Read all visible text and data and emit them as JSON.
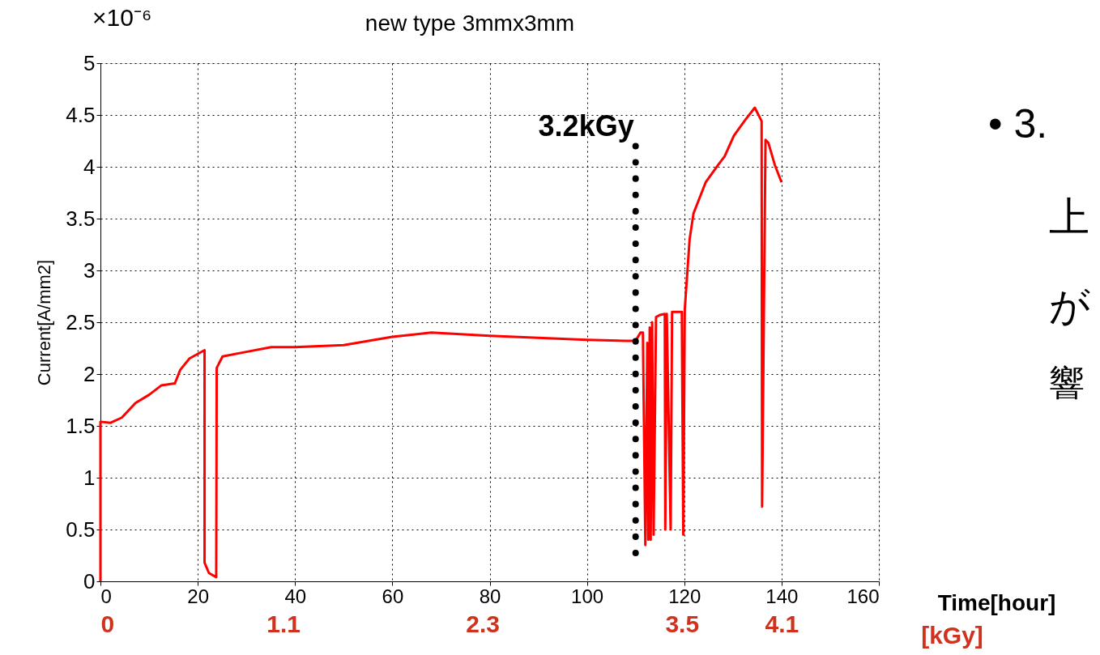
{
  "chart_data": {
    "type": "line",
    "title": "new type 3mmx3mm",
    "xlabel": "Time[hour]",
    "ylabel": "Current[A/mm2]",
    "x2label": "[kGy]",
    "xlim": [
      0,
      160
    ],
    "xticks": [
      0,
      20,
      40,
      60,
      80,
      100,
      120,
      140,
      160
    ],
    "x2lim": [
      0,
      4.686
    ],
    "x2ticks": [
      0,
      1.1,
      2.3,
      3.5,
      4.1
    ],
    "ylim": [
      0,
      5
    ],
    "yticks": [
      0,
      0.5,
      1,
      1.5,
      2,
      2.5,
      3,
      3.5,
      4,
      4.5,
      5
    ],
    "grid": true,
    "marker": "none",
    "line_style": "solid",
    "ref_lines": [
      {
        "axis": "x",
        "value": 110,
        "label": "3.2kGy",
        "line_style": "dotted",
        "color": "#000000"
      }
    ],
    "annotations": [
      "×10⁻⁶",
      "• 3.",
      "上",
      "が",
      "響"
    ],
    "series": [
      {
        "color": "#ff0000",
        "x": [
          0,
          0,
          2.1,
          4.4,
          7.2,
          10.0,
          12.5,
          15.3,
          16.4,
          18.3,
          21.4,
          21.4,
          22.3,
          23.8,
          23.9,
          25.1,
          29.5,
          35.1,
          40,
          50,
          60,
          68,
          80,
          90,
          100,
          108,
          110,
          111,
          111.5,
          112,
          112.4,
          112.6,
          112.9,
          113.1,
          113.4,
          113.7,
          114.2,
          115,
          116,
          116.1,
          116.4,
          117.2,
          117.5,
          119.5,
          119.8,
          120.1,
          121.1,
          121.9,
          124.4,
          127.0,
          128.3,
          130.2,
          132.5,
          134.5,
          135.9,
          136.0,
          136.7,
          137.3,
          138.6,
          140
        ],
        "values": [
          0,
          1.54,
          1.53,
          1.58,
          1.72,
          1.8,
          1.89,
          1.91,
          2.04,
          2.15,
          2.23,
          0.18,
          0.08,
          0.04,
          2.06,
          2.17,
          2.21,
          2.26,
          2.26,
          2.28,
          2.36,
          2.4,
          2.37,
          2.35,
          2.33,
          2.32,
          2.32,
          2.4,
          2.4,
          0.35,
          2.3,
          0.4,
          2.45,
          0.4,
          2.5,
          0.45,
          2.55,
          2.57,
          2.58,
          0.5,
          2.58,
          0.5,
          2.6,
          2.6,
          0.45,
          2.62,
          3.3,
          3.55,
          3.85,
          4.02,
          4.1,
          4.3,
          4.45,
          4.57,
          4.44,
          0.72,
          4.26,
          4.23,
          4.02,
          3.85
        ]
      }
    ]
  }
}
